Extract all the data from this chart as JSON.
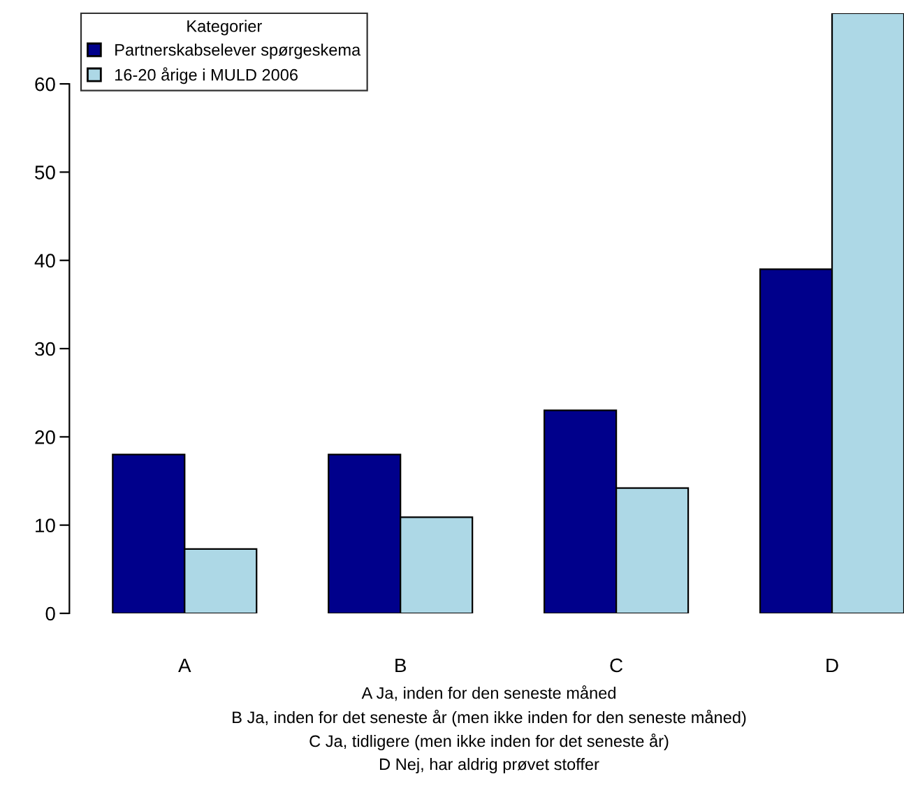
{
  "chart_data": {
    "type": "bar",
    "categories": [
      "A",
      "B",
      "C",
      "D"
    ],
    "series": [
      {
        "name": "Partnerskabselever spørgeskema",
        "color": "#00008b",
        "values": [
          18,
          18,
          23,
          39
        ]
      },
      {
        "name": "16-20 årige i MULD 2006",
        "color": "#add8e6",
        "values": [
          7.3,
          10.9,
          14.2,
          68
        ]
      }
    ],
    "ylim": [
      0,
      68
    ],
    "yticks": [
      0,
      10,
      20,
      30,
      40,
      50,
      60
    ],
    "legend": "top left",
    "legend_title": "Kategorier",
    "grid": false,
    "annotations": [
      "A Ja, inden for den seneste måned",
      "B Ja, inden for det seneste år (men ikke inden for den seneste måned)",
      "C Ja, tidligere (men ikke inden for det seneste år)",
      "D Nej, har aldrig prøvet stoffer"
    ]
  }
}
